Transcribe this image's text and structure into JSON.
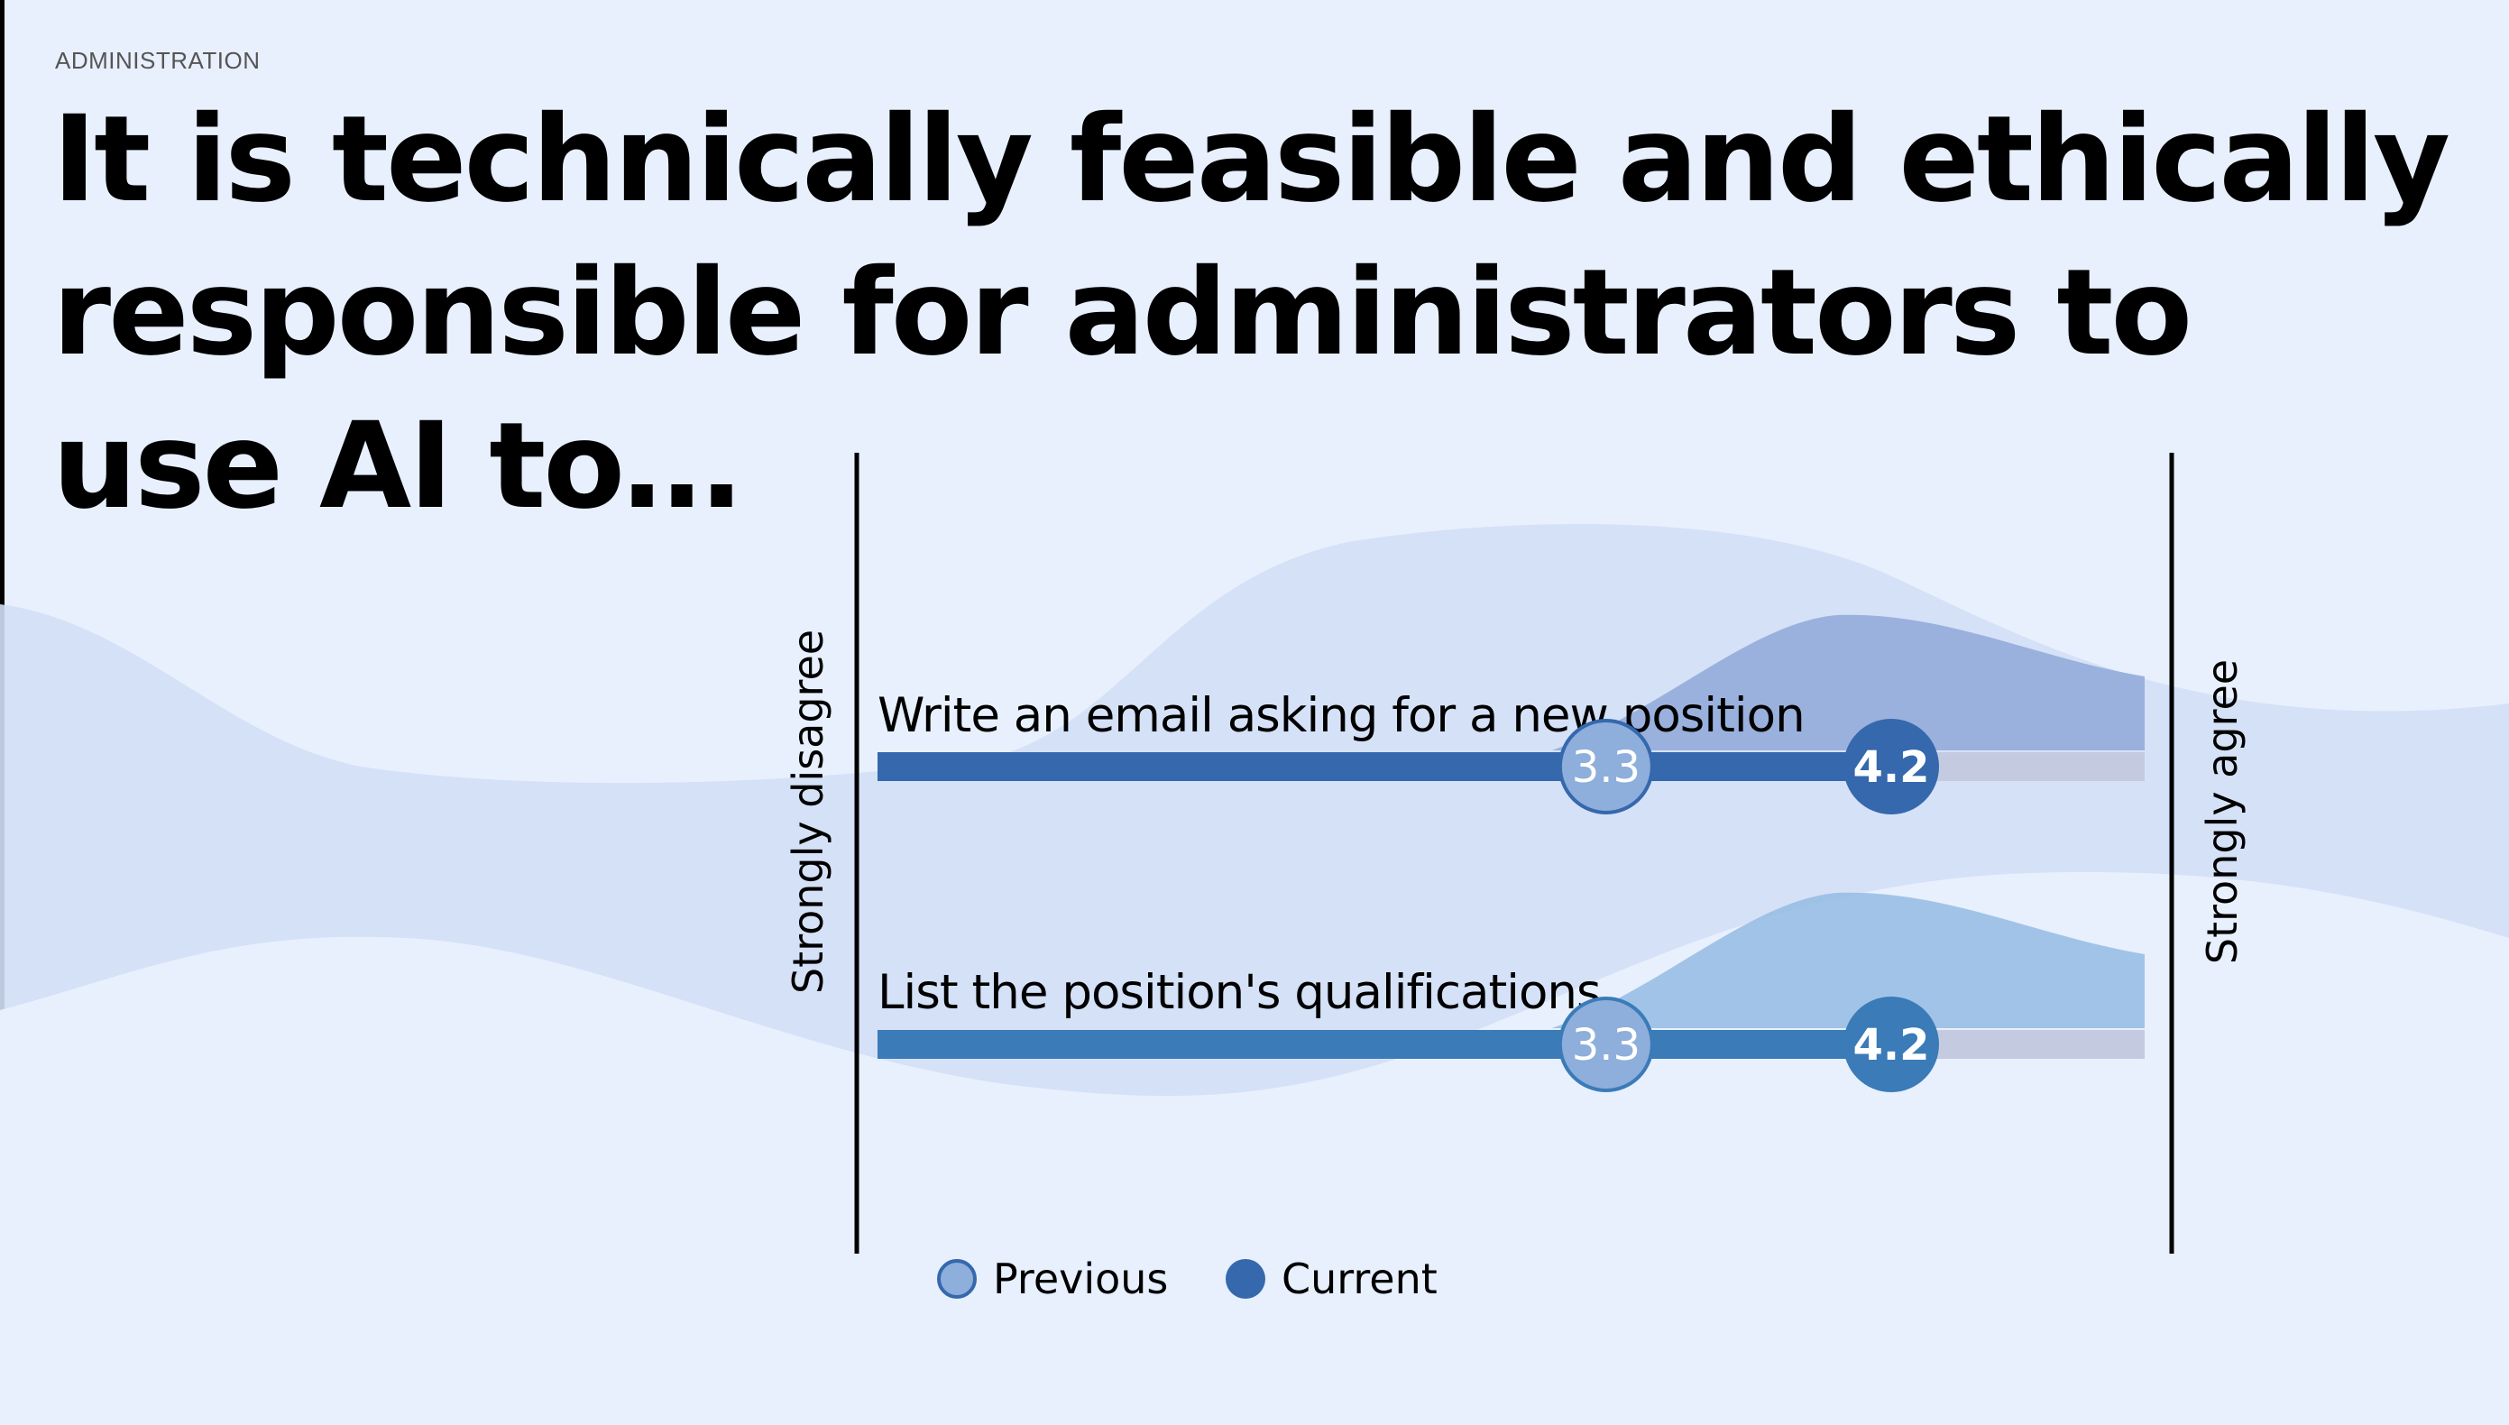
{
  "section": "ADMINISTRATION",
  "title": "It is technically feasible and ethically responsible for administrators to use AI to…",
  "colors": {
    "background": "#e8f0fd",
    "previous": "#8eaedb",
    "current": "#3568ad",
    "current_row2": "#3a7bb8",
    "track": "#c4cbe0"
  },
  "chart_data": {
    "type": "dot-plot",
    "title": "It is technically feasible and ethically responsible for administrators to use AI to…",
    "xlim": [
      1,
      5
    ],
    "axis_left_label": "Strongly disagree",
    "axis_right_label": "Strongly agree",
    "categories": [
      "Write an email asking for a new position",
      "List the position's qualifications"
    ],
    "series": [
      {
        "name": "Previous",
        "values": [
          3.3,
          3.3
        ]
      },
      {
        "name": "Current",
        "values": [
          4.2,
          4.2
        ]
      }
    ],
    "value_labels": {
      "previous": [
        "3.3",
        "3.3"
      ],
      "current": [
        "4.2",
        "4.2"
      ]
    },
    "legend": {
      "placement": "bottom-left",
      "items": [
        "Previous",
        "Current"
      ]
    }
  }
}
